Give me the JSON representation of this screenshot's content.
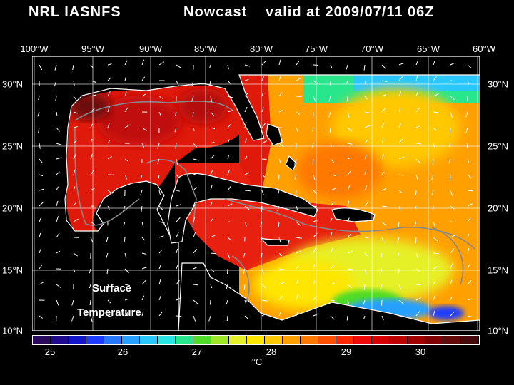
{
  "title": {
    "model": "NRL IASNFS",
    "kind": "Nowcast",
    "valid": "valid at 2009/07/11 06Z"
  },
  "map": {
    "longitude_labels": [
      "100°W",
      "95°W",
      "90°W",
      "85°W",
      "80°W",
      "75°W",
      "70°W",
      "65°W",
      "60°W"
    ],
    "latitude_labels": [
      "30°N",
      "25°N",
      "20°N",
      "15°N",
      "10°N"
    ],
    "variable_label_line1": "Surface",
    "variable_label_line2": "Temperature",
    "colors": {
      "land": "#000000",
      "coastline": "#ffffff",
      "isobath": "#888888",
      "grid": "#ffffff",
      "current_vectors": "#ffffff"
    }
  },
  "colorbar": {
    "tick_labels": [
      "25",
      "26",
      "27",
      "28",
      "29",
      "30"
    ],
    "unit": "°C",
    "colors": [
      "#2a0a5e",
      "#1e0a8c",
      "#1414c8",
      "#1e3cff",
      "#2878ff",
      "#28a0ff",
      "#28c8ff",
      "#28e6e6",
      "#28e68c",
      "#50dc28",
      "#a0e628",
      "#e6f028",
      "#ffe600",
      "#ffc800",
      "#ffa000",
      "#ff7800",
      "#ff5000",
      "#ff2800",
      "#f00a0a",
      "#d70000",
      "#be0000",
      "#a00000",
      "#820000",
      "#640a0a",
      "#460a0a"
    ]
  }
}
